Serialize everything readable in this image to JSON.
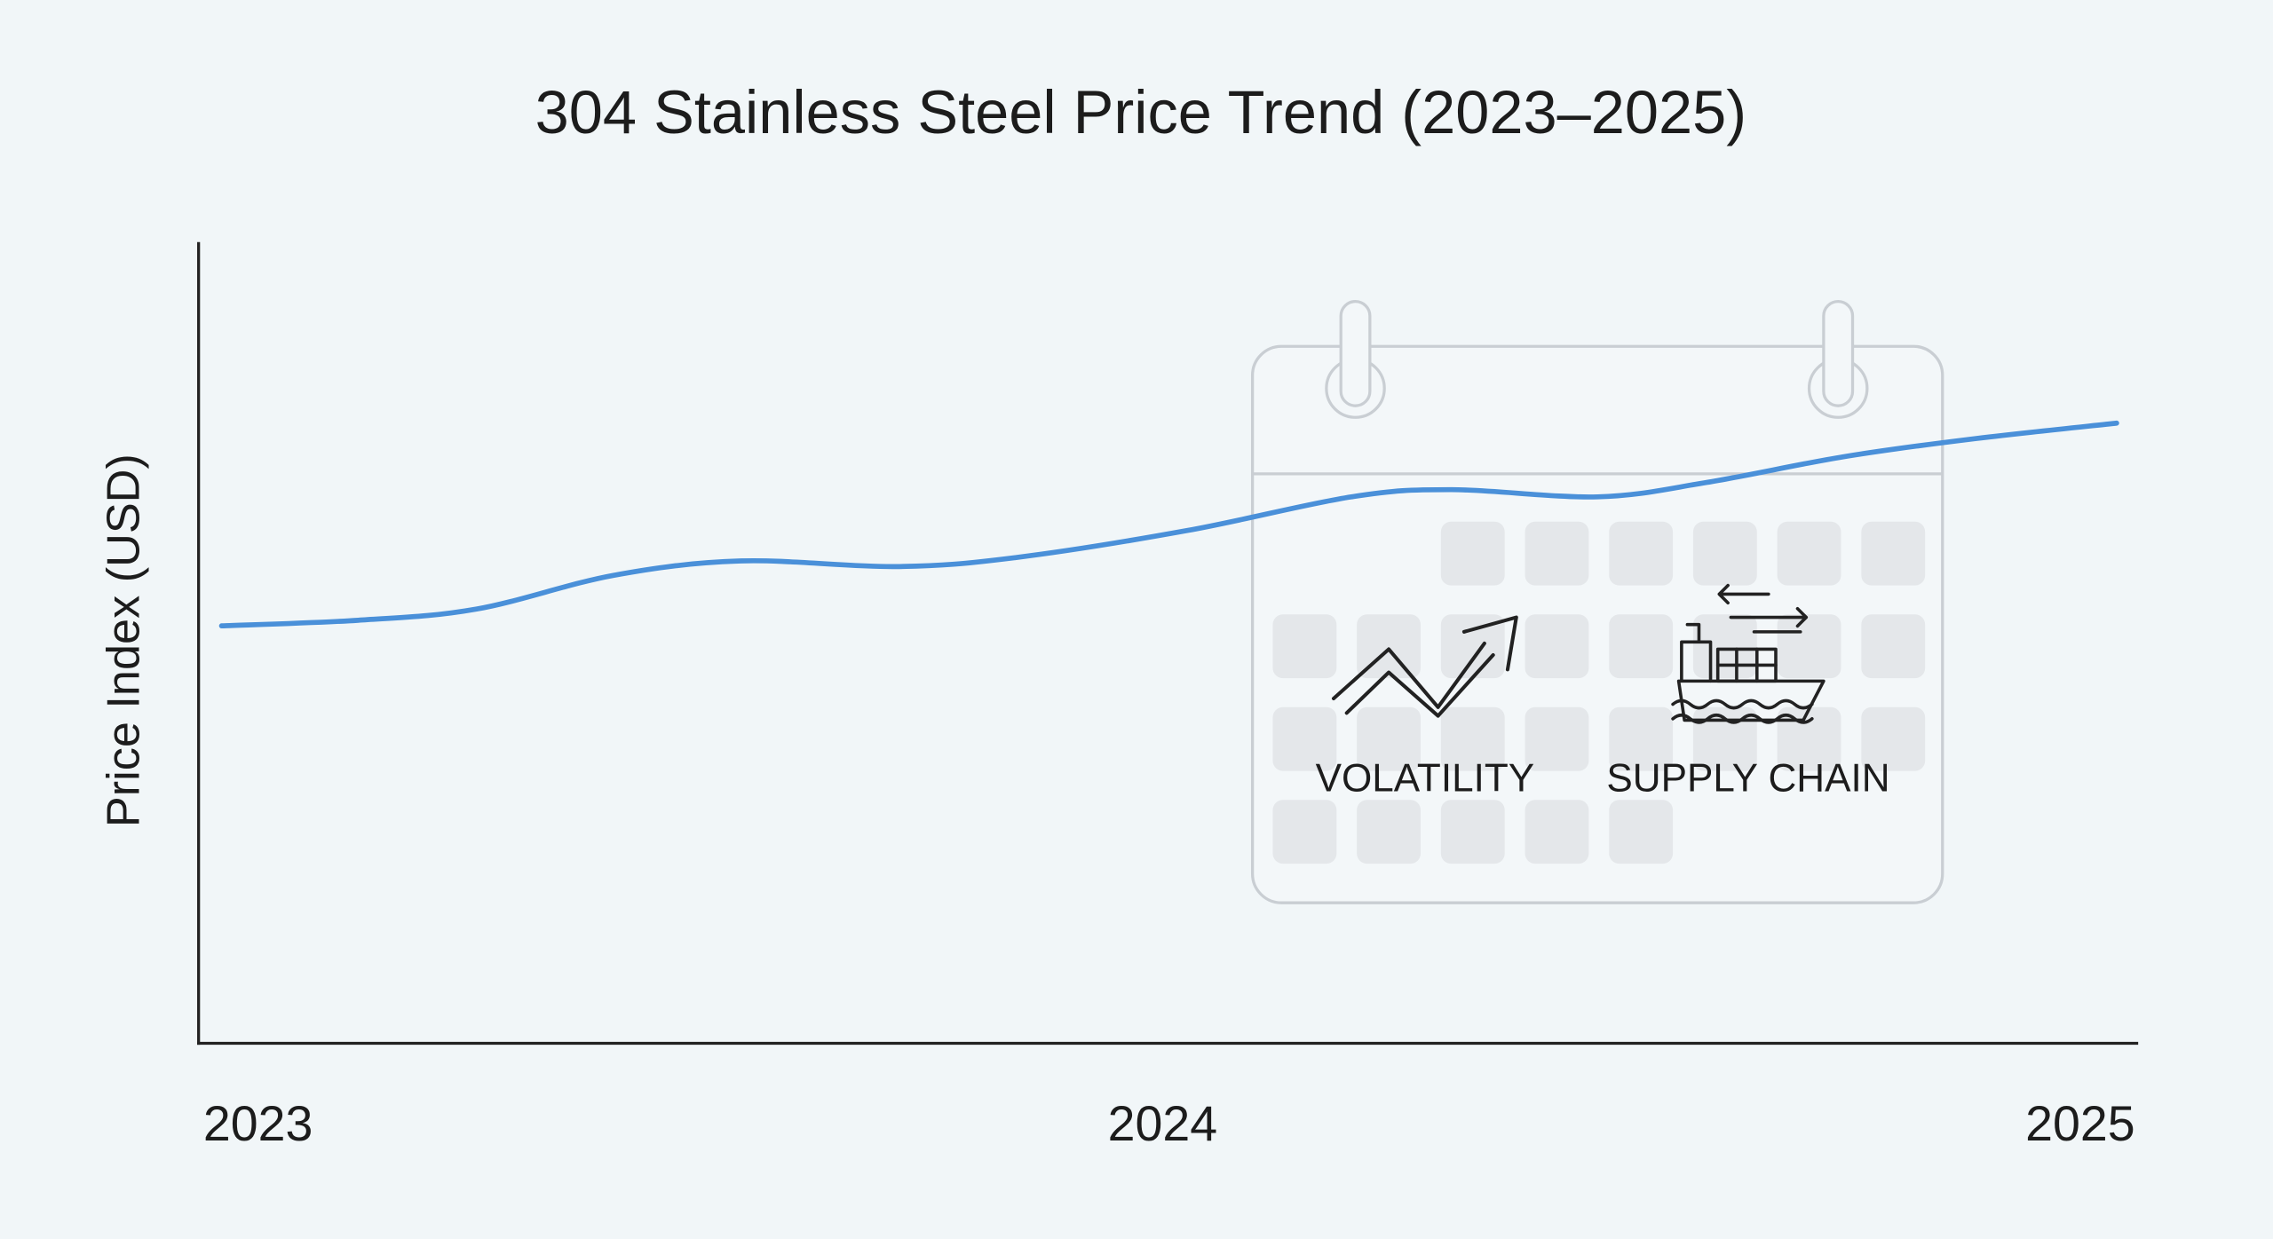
{
  "chart_data": {
    "type": "line",
    "title": "304 Stainless Steel Price Trend (2023–2025)",
    "xlabel": "",
    "ylabel": "Price Index (USD)",
    "x_ticks": [
      "2023",
      "2024",
      "2025"
    ],
    "xlim": [
      2023,
      2025
    ],
    "ylim": [
      0,
      100
    ],
    "grid": false,
    "series": [
      {
        "color": "#4a90d9",
        "x": [
          2022.96,
          2023.11,
          2023.24,
          2023.39,
          2023.53,
          2023.7,
          2023.83,
          2024.02,
          2024.2,
          2024.31,
          2024.47,
          2024.59,
          2024.74,
          2024.88,
          2025.04
        ],
        "y": [
          52.1,
          52.8,
          54.2,
          58.4,
          60.2,
          59.5,
          60.6,
          64.0,
          68.2,
          69.1,
          68.2,
          70.0,
          73.2,
          75.4,
          77.4
        ]
      }
    ],
    "annotations": {
      "illustration": "calendar-icon",
      "items": [
        {
          "label": "VOLATILITY",
          "icon": "zigzag-arrow-up-icon"
        },
        {
          "label": "SUPPLY CHAIN",
          "icon": "cargo-ship-icon"
        }
      ]
    }
  },
  "colors": {
    "background": "#f1f6f8",
    "line": "#4a90d9",
    "axis": "#222222",
    "calendar_stroke": "#c9ced3",
    "calendar_cell": "#e4e7ea"
  }
}
